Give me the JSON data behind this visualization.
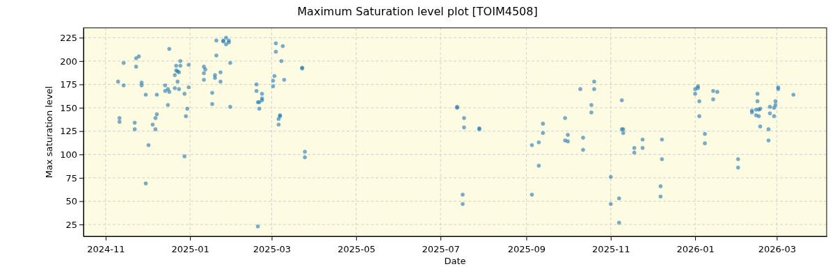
{
  "chart_data": {
    "type": "scatter",
    "title": "Maximum Saturation level plot [TOIM4508]",
    "xlabel": "Date",
    "ylabel": "Max saturation level",
    "xlim": [
      "2024-10-16",
      "2026-04-06"
    ],
    "ylim": [
      12.4,
      235.6
    ],
    "xticks": [
      "2024-11",
      "2025-01",
      "2025-03",
      "2025-05",
      "2025-07",
      "2025-09",
      "2025-11",
      "2026-01",
      "2026-03"
    ],
    "yticks": [
      25,
      50,
      75,
      100,
      125,
      150,
      175,
      200,
      225
    ],
    "grid": true,
    "marker": "circle",
    "series": [
      {
        "color": "#1f77b4",
        "x": [
          "2024-11-10",
          "2024-11-11",
          "2024-11-11",
          "2024-11-14",
          "2024-11-14",
          "2024-11-22",
          "2024-11-22",
          "2024-11-23",
          "2024-11-23",
          "2024-11-25",
          "2024-11-27",
          "2024-11-27",
          "2024-11-30",
          "2024-11-30",
          "2024-12-02",
          "2024-12-05",
          "2024-12-07",
          "2024-12-08",
          "2024-12-07",
          "2024-12-08",
          "2024-12-14",
          "2024-12-14",
          "2024-12-16",
          "2024-12-17",
          "2024-12-16",
          "2024-12-17",
          "2024-12-21",
          "2024-12-22",
          "2024-12-22",
          "2024-12-23",
          "2024-12-24",
          "2024-12-23",
          "2024-12-21",
          "2024-12-24",
          "2024-12-25",
          "2024-12-25",
          "2024-12-28",
          "2024-12-28",
          "2024-12-29",
          "2024-12-30",
          "2024-12-31",
          "2024-12-31",
          "2025-01-11",
          "2025-01-12",
          "2025-01-11",
          "2025-01-11",
          "2025-01-17",
          "2025-01-17",
          "2025-01-19",
          "2025-01-19",
          "2025-01-20",
          "2025-01-20",
          "2025-01-23",
          "2025-01-23",
          "2025-01-25",
          "2025-01-25",
          "2025-01-27",
          "2025-01-27",
          "2025-01-29",
          "2025-01-29",
          "2025-01-30",
          "2025-01-30",
          "2025-02-18",
          "2025-02-18",
          "2025-02-22",
          "2025-02-22",
          "2025-02-22",
          "2025-02-19",
          "2025-02-20",
          "2025-02-20",
          "2025-02-19",
          "2025-03-04",
          "2025-03-04",
          "2025-03-09",
          "2025-03-08",
          "2025-03-03",
          "2025-03-02",
          "2025-03-02",
          "2025-03-10",
          "2025-03-07",
          "2025-03-07",
          "2025-03-06",
          "2025-03-06",
          "2025-03-23",
          "2025-03-23",
          "2025-03-25",
          "2025-03-25",
          "2025-07-13",
          "2025-07-13",
          "2025-07-18",
          "2025-07-18",
          "2025-07-29",
          "2025-07-29",
          "2025-07-17",
          "2025-07-17",
          "2025-09-05",
          "2025-09-05",
          "2025-09-10",
          "2025-09-10",
          "2025-09-13",
          "2025-09-13",
          "2025-09-29",
          "2025-09-29",
          "2025-10-01",
          "2025-10-01",
          "2025-10-10",
          "2025-10-12",
          "2025-10-12",
          "2025-10-18",
          "2025-10-18",
          "2025-10-20",
          "2025-10-20",
          "2025-11-01",
          "2025-11-01",
          "2025-11-07",
          "2025-11-07",
          "2025-11-09",
          "2025-11-09",
          "2025-11-10",
          "2025-11-10",
          "2025-11-18",
          "2025-11-18",
          "2025-11-24",
          "2025-11-24",
          "2025-12-08",
          "2025-12-08",
          "2025-12-07",
          "2025-12-07",
          "2026-01-01",
          "2026-01-01",
          "2026-01-03",
          "2026-01-03",
          "2026-01-04",
          "2026-01-04",
          "2026-01-08",
          "2026-01-08",
          "2026-01-14",
          "2026-01-14",
          "2026-01-17",
          "2026-02-01",
          "2026-02-01",
          "2026-02-11",
          "2026-02-11",
          "2026-02-14",
          "2026-02-14",
          "2026-02-15",
          "2026-02-15",
          "2026-02-16",
          "2026-02-16",
          "2026-02-17",
          "2026-02-17",
          "2026-02-23",
          "2026-02-23",
          "2026-02-24",
          "2026-02-24",
          "2026-02-27",
          "2026-02-27",
          "2026-02-28",
          "2026-02-28",
          "2026-03-02",
          "2026-03-02",
          "2026-03-13"
        ],
        "values": [
          178,
          139,
          135,
          198,
          174,
          134,
          127,
          203,
          194,
          205,
          177,
          174,
          164,
          69,
          110,
          132,
          139,
          143,
          127,
          164,
          174,
          168,
          170,
          167,
          153,
          213,
          185,
          195,
          190,
          189,
          188,
          178,
          171,
          170,
          200,
          195,
          165,
          98,
          141,
          149,
          196,
          172,
          194,
          191,
          187,
          180,
          166,
          154,
          185,
          182,
          222,
          206,
          188,
          178,
          222,
          221,
          225,
          218,
          222,
          220,
          198,
          151,
          175,
          168,
          165,
          160,
          158,
          156,
          156,
          149,
          23,
          219,
          210,
          216,
          200,
          184,
          179,
          173,
          180,
          142,
          141,
          138,
          132,
          193,
          192,
          103,
          97,
          151,
          150,
          139,
          129,
          128,
          127,
          57,
          47,
          110,
          57,
          113,
          88,
          133,
          123,
          139,
          115,
          121,
          114,
          170,
          118,
          105,
          153,
          145,
          178,
          170,
          76,
          47,
          53,
          27,
          158,
          127,
          127,
          123,
          107,
          102,
          116,
          107,
          116,
          95,
          66,
          55,
          170,
          165,
          173,
          171,
          157,
          141,
          122,
          112,
          168,
          159,
          167,
          95,
          86,
          147,
          145,
          148,
          142,
          165,
          157,
          148,
          141,
          149,
          130,
          127,
          115,
          151,
          144,
          150,
          141,
          157,
          153,
          172,
          170,
          164
        ]
      }
    ]
  }
}
